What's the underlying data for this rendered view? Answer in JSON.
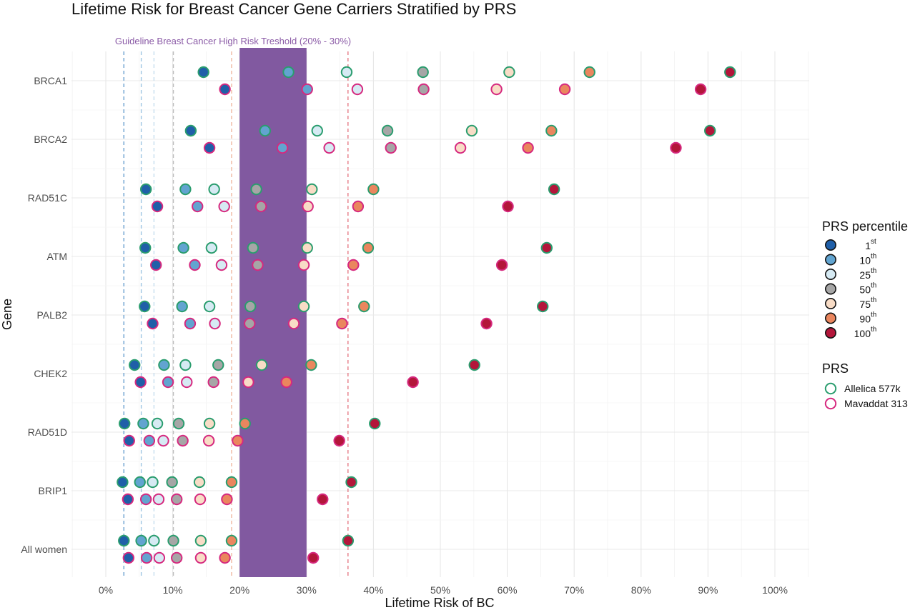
{
  "chart_data": {
    "type": "scatter",
    "title": "Lifetime Risk for Breast Cancer Gene Carriers Stratified by PRS",
    "xlabel": "Lifetime Risk of BC",
    "ylabel": "Gene",
    "xlim": [
      -0.05,
      1.05
    ],
    "x_ticks": [
      0,
      0.1,
      0.2,
      0.3,
      0.4,
      0.5,
      0.6,
      0.7,
      0.8,
      0.9,
      1.0
    ],
    "x_tick_labels": [
      "0%",
      "10%",
      "20%",
      "30%",
      "40%",
      "50%",
      "60%",
      "70%",
      "80%",
      "90%",
      "100%"
    ],
    "grid": true,
    "categories": [
      "BRCA1",
      "BRCA2",
      "RAD51C",
      "ATM",
      "PALB2",
      "CHEK2",
      "RAD51D",
      "BRIP1",
      "All women"
    ],
    "threshold_band": {
      "label": "Guideline Breast Cancer High Risk Treshold (20% - 30%)",
      "range": [
        0.2,
        0.3
      ],
      "color": "#8159a0"
    },
    "reference_lines": [
      {
        "x": 0.027,
        "color": "#6aa0d0"
      },
      {
        "x": 0.053,
        "color": "#9ec5e3"
      },
      {
        "x": 0.072,
        "color": "#c5ddee"
      },
      {
        "x": 0.101,
        "color": "#bdbdbd"
      },
      {
        "x": 0.188,
        "color": "#f0b9a0"
      },
      {
        "x": 0.362,
        "color": "#e57a85"
      }
    ],
    "percentiles": [
      "1st",
      "10th",
      "25th",
      "50th",
      "75th",
      "90th",
      "100th"
    ],
    "percentile_colors": [
      "#1f5fa8",
      "#62a4d0",
      "#d6eaf3",
      "#a6a6a6",
      "#f8dcc6",
      "#ea865e",
      "#b3163a"
    ],
    "series": [
      {
        "name": "Allelica 577k",
        "stroke": "#2a9d6e",
        "values": {
          "BRCA1": [
            0.146,
            0.273,
            0.36,
            0.474,
            0.603,
            0.723,
            0.933
          ],
          "BRCA2": [
            0.127,
            0.238,
            0.316,
            0.421,
            0.547,
            0.666,
            0.903
          ],
          "RAD51C": [
            0.06,
            0.119,
            0.162,
            0.225,
            0.308,
            0.4,
            0.67
          ],
          "ATM": [
            0.059,
            0.116,
            0.158,
            0.22,
            0.301,
            0.392,
            0.659
          ],
          "PALB2": [
            0.058,
            0.114,
            0.155,
            0.216,
            0.296,
            0.386,
            0.653
          ],
          "CHEK2": [
            0.043,
            0.087,
            0.119,
            0.168,
            0.233,
            0.307,
            0.551
          ],
          "RAD51D": [
            0.028,
            0.056,
            0.077,
            0.109,
            0.155,
            0.208,
            0.402
          ],
          "BRIP1": [
            0.025,
            0.051,
            0.07,
            0.099,
            0.14,
            0.188,
            0.367
          ],
          "All women": [
            0.027,
            0.053,
            0.072,
            0.101,
            0.142,
            0.188,
            0.362
          ]
        }
      },
      {
        "name": "Mavaddat 313",
        "stroke": "#d6297f",
        "values": {
          "BRCA1": [
            0.178,
            0.301,
            0.376,
            0.475,
            0.584,
            0.686,
            0.889
          ],
          "BRCA2": [
            0.155,
            0.264,
            0.334,
            0.426,
            0.53,
            0.631,
            0.852
          ],
          "RAD51C": [
            0.077,
            0.137,
            0.177,
            0.232,
            0.302,
            0.377,
            0.601
          ],
          "ATM": [
            0.075,
            0.133,
            0.173,
            0.227,
            0.296,
            0.37,
            0.592
          ],
          "PALB2": [
            0.07,
            0.126,
            0.163,
            0.215,
            0.281,
            0.353,
            0.569
          ],
          "CHEK2": [
            0.052,
            0.093,
            0.121,
            0.161,
            0.213,
            0.27,
            0.459
          ],
          "RAD51D": [
            0.035,
            0.065,
            0.086,
            0.115,
            0.154,
            0.197,
            0.349
          ],
          "BRIP1": [
            0.033,
            0.06,
            0.079,
            0.106,
            0.141,
            0.181,
            0.324
          ],
          "All women": [
            0.034,
            0.061,
            0.08,
            0.106,
            0.142,
            0.178,
            0.31
          ]
        }
      }
    ],
    "legend": {
      "position": "right",
      "percentile_title": "PRS percentile",
      "percentile_items": [
        {
          "num": "1",
          "sup": "st"
        },
        {
          "num": "10",
          "sup": "th"
        },
        {
          "num": "25",
          "sup": "th"
        },
        {
          "num": "50",
          "sup": "th"
        },
        {
          "num": "75",
          "sup": "th"
        },
        {
          "num": "90",
          "sup": "th"
        },
        {
          "num": "100",
          "sup": "th"
        }
      ],
      "prs_title": "PRS"
    }
  }
}
